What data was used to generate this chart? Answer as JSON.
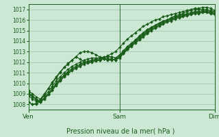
{
  "title": "",
  "xlabel": "Pression niveau de la mer( hPa )",
  "ylim": [
    1007.5,
    1017.5
  ],
  "yticks": [
    1008,
    1009,
    1010,
    1011,
    1012,
    1013,
    1014,
    1015,
    1016,
    1017
  ],
  "xlim": [
    0,
    47
  ],
  "xtick_positions": [
    0,
    23,
    47
  ],
  "xtick_labels": [
    "Ven",
    "Sam",
    "Dim"
  ],
  "bg_color": "#cce8d4",
  "grid_color": "#99c4a8",
  "line_color": "#1a5c1a",
  "marker": "D",
  "marker_size": 2.0,
  "line_width": 0.8,
  "series": [
    [
      1008.2,
      1008.0,
      1008.1,
      1008.5,
      1009.0,
      1009.5,
      1010.0,
      1010.5,
      1011.0,
      1011.5,
      1011.8,
      1012.2,
      1012.5,
      1012.3,
      1012.0,
      1011.9,
      1012.0,
      1012.1,
      1012.2,
      1012.4,
      1012.6,
      1012.8,
      1013.0,
      1013.4,
      1013.8,
      1014.2,
      1014.5,
      1014.8,
      1015.1,
      1015.4,
      1015.6,
      1015.8,
      1016.0,
      1016.1,
      1016.3,
      1016.4,
      1016.5,
      1016.6,
      1016.7,
      1016.8,
      1016.9,
      1017.0,
      1017.1,
      1017.1,
      1017.2,
      1017.2,
      1017.1,
      1016.9
    ],
    [
      1008.8,
      1008.5,
      1008.3,
      1008.2,
      1008.6,
      1009.0,
      1009.5,
      1010.0,
      1010.4,
      1010.8,
      1011.1,
      1011.4,
      1011.6,
      1011.8,
      1012.0,
      1012.1,
      1012.2,
      1012.3,
      1012.3,
      1012.4,
      1012.5,
      1012.5,
      1012.4,
      1012.6,
      1013.0,
      1013.4,
      1013.7,
      1014.0,
      1014.3,
      1014.6,
      1014.9,
      1015.2,
      1015.4,
      1015.6,
      1015.8,
      1015.9,
      1016.1,
      1016.2,
      1016.3,
      1016.4,
      1016.5,
      1016.6,
      1016.7,
      1016.7,
      1016.8,
      1016.8,
      1016.7,
      1016.6
    ],
    [
      1009.0,
      1008.7,
      1008.4,
      1008.2,
      1008.5,
      1008.9,
      1009.3,
      1009.8,
      1010.2,
      1010.6,
      1010.9,
      1011.2,
      1011.4,
      1011.6,
      1011.8,
      1012.0,
      1012.1,
      1012.2,
      1012.2,
      1012.3,
      1012.3,
      1012.3,
      1012.2,
      1012.4,
      1012.8,
      1013.2,
      1013.5,
      1013.8,
      1014.1,
      1014.4,
      1014.7,
      1015.0,
      1015.2,
      1015.4,
      1015.6,
      1015.8,
      1015.9,
      1016.1,
      1016.2,
      1016.3,
      1016.4,
      1016.5,
      1016.6,
      1016.6,
      1016.7,
      1016.7,
      1016.6,
      1016.5
    ],
    [
      1009.1,
      1008.8,
      1008.5,
      1008.3,
      1008.6,
      1009.0,
      1009.4,
      1009.9,
      1010.3,
      1010.7,
      1011.0,
      1011.3,
      1011.5,
      1011.7,
      1011.9,
      1012.0,
      1012.1,
      1012.2,
      1012.2,
      1012.3,
      1012.3,
      1012.3,
      1012.2,
      1012.5,
      1012.9,
      1013.3,
      1013.6,
      1013.9,
      1014.2,
      1014.5,
      1014.8,
      1015.1,
      1015.3,
      1015.5,
      1015.7,
      1015.9,
      1016.0,
      1016.2,
      1016.3,
      1016.4,
      1016.5,
      1016.6,
      1016.7,
      1016.7,
      1016.8,
      1016.8,
      1016.7,
      1016.6
    ],
    [
      1009.3,
      1009.0,
      1008.7,
      1008.5,
      1008.8,
      1009.2,
      1009.7,
      1010.2,
      1010.6,
      1011.0,
      1011.3,
      1011.6,
      1011.8,
      1012.0,
      1012.2,
      1012.3,
      1012.4,
      1012.4,
      1012.4,
      1012.5,
      1012.5,
      1012.5,
      1012.4,
      1012.7,
      1013.1,
      1013.5,
      1013.8,
      1014.1,
      1014.4,
      1014.7,
      1015.0,
      1015.3,
      1015.5,
      1015.7,
      1015.9,
      1016.0,
      1016.2,
      1016.3,
      1016.4,
      1016.5,
      1016.6,
      1016.7,
      1016.8,
      1016.8,
      1016.9,
      1016.9,
      1016.8,
      1016.7
    ],
    [
      1008.2,
      1008.0,
      1008.0,
      1008.3,
      1008.9,
      1009.5,
      1010.1,
      1010.6,
      1011.1,
      1011.5,
      1011.9,
      1012.2,
      1012.5,
      1012.9,
      1013.0,
      1013.0,
      1012.9,
      1012.7,
      1012.5,
      1012.3,
      1012.2,
      1012.2,
      1012.3,
      1012.5,
      1012.8,
      1013.2,
      1013.6,
      1014.1,
      1014.5,
      1014.8,
      1015.1,
      1015.3,
      1015.5,
      1015.7,
      1015.9,
      1016.0,
      1016.2,
      1016.4,
      1016.5,
      1016.6,
      1016.8,
      1016.9,
      1017.0,
      1017.0,
      1017.0,
      1017.0,
      1016.9,
      1016.8
    ]
  ]
}
